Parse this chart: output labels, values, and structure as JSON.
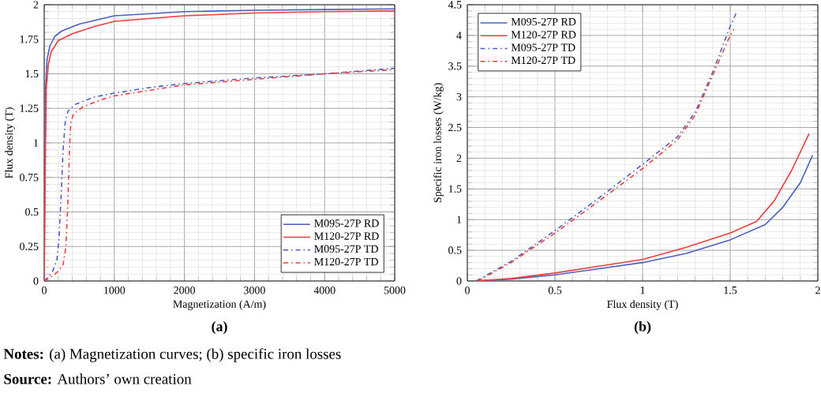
{
  "chart_data": [
    {
      "type": "line",
      "title": "(a)",
      "xlabel": "Magnetization (A/m)",
      "ylabel": "Flux density (T)",
      "xlim": [
        0,
        5000
      ],
      "ylim": [
        0,
        2
      ],
      "xticks": [
        0,
        1000,
        2000,
        3000,
        4000,
        5000
      ],
      "yticks": [
        0,
        0.25,
        0.5,
        0.75,
        1,
        1.25,
        1.5,
        1.75,
        2
      ],
      "grid": true,
      "legend": "bottom right",
      "marker": "none",
      "series": [
        {
          "name": "M095-27P RD",
          "color": "#4a5fc1",
          "line_style": "solid",
          "x": [
            0,
            10,
            20,
            40,
            80,
            150,
            250,
            500,
            1000,
            2000,
            3000,
            4000,
            5000
          ],
          "values": [
            0,
            0.8,
            1.4,
            1.6,
            1.7,
            1.77,
            1.81,
            1.86,
            1.92,
            1.95,
            1.96,
            1.965,
            1.97
          ]
        },
        {
          "name": "M120-27P RD",
          "color": "#f03c3c",
          "line_style": "solid",
          "x": [
            0,
            15,
            30,
            60,
            100,
            200,
            400,
            700,
            1000,
            2000,
            3000,
            4000,
            5000
          ],
          "values": [
            0,
            0.8,
            1.4,
            1.57,
            1.66,
            1.74,
            1.79,
            1.84,
            1.88,
            1.92,
            1.94,
            1.95,
            1.955
          ]
        },
        {
          "name": "M095-27P TD",
          "color": "#4a5fc1",
          "line_style": "dashed",
          "x": [
            0,
            60,
            120,
            180,
            210,
            240,
            270,
            300,
            340,
            450,
            700,
            1000,
            1500,
            2000,
            3000,
            4000,
            5000
          ],
          "values": [
            0,
            0.03,
            0.07,
            0.15,
            0.3,
            0.6,
            0.95,
            1.15,
            1.23,
            1.28,
            1.33,
            1.36,
            1.4,
            1.43,
            1.47,
            1.5,
            1.54
          ]
        },
        {
          "name": "M120-27P TD",
          "color": "#f03c3c",
          "line_style": "dashed",
          "x": [
            0,
            100,
            200,
            270,
            310,
            340,
            360,
            380,
            420,
            550,
            800,
            1000,
            1500,
            2000,
            3000,
            4000,
            5000
          ],
          "values": [
            0,
            0.03,
            0.07,
            0.12,
            0.25,
            0.6,
            0.95,
            1.15,
            1.21,
            1.26,
            1.31,
            1.34,
            1.38,
            1.42,
            1.46,
            1.5,
            1.53
          ]
        }
      ],
      "annotations": [
        "**Notes:** (a) Magnetization curves; (b) specific iron losses",
        "**Source:** Authors’ own creation"
      ]
    },
    {
      "type": "line",
      "title": "(b)",
      "xlabel": "Flux density (T)",
      "ylabel": "Specific iron losses (W/kg)",
      "xlim": [
        0,
        2
      ],
      "ylim": [
        0,
        4.5
      ],
      "xticks": [
        0,
        0.5,
        1,
        1.5,
        2
      ],
      "yticks": [
        0,
        0.5,
        1,
        1.5,
        2,
        2.5,
        3,
        3.5,
        4,
        4.5
      ],
      "grid": true,
      "legend": "top left",
      "marker": "none",
      "series": [
        {
          "name": "M095-27P RD",
          "color": "#4a5fc1",
          "line_style": "solid",
          "x": [
            0.05,
            0.25,
            0.5,
            0.75,
            1.0,
            1.25,
            1.5,
            1.7,
            1.8,
            1.9,
            1.97
          ],
          "values": [
            0,
            0.03,
            0.1,
            0.2,
            0.3,
            0.45,
            0.67,
            0.92,
            1.2,
            1.6,
            2.05
          ]
        },
        {
          "name": "M120-27P RD",
          "color": "#f03c3c",
          "line_style": "solid",
          "x": [
            0.05,
            0.25,
            0.5,
            0.75,
            1.0,
            1.25,
            1.5,
            1.65,
            1.75,
            1.85,
            1.95
          ],
          "values": [
            0,
            0.04,
            0.13,
            0.24,
            0.35,
            0.55,
            0.78,
            0.97,
            1.3,
            1.8,
            2.4
          ]
        },
        {
          "name": "M095-27P TD",
          "color": "#4a5fc1",
          "line_style": "dashed",
          "x": [
            0.05,
            0.25,
            0.5,
            0.75,
            1.0,
            1.2,
            1.3,
            1.4,
            1.5,
            1.54
          ],
          "values": [
            0,
            0.32,
            0.82,
            1.35,
            1.9,
            2.35,
            2.75,
            3.4,
            4.15,
            4.4
          ]
        },
        {
          "name": "M120-27P TD",
          "color": "#f03c3c",
          "line_style": "dashed",
          "x": [
            0.06,
            0.25,
            0.5,
            0.75,
            1.0,
            1.2,
            1.3,
            1.4,
            1.5,
            1.52
          ],
          "values": [
            0,
            0.3,
            0.78,
            1.3,
            1.83,
            2.3,
            2.7,
            3.35,
            4.0,
            4.1
          ]
        }
      ]
    }
  ]
}
